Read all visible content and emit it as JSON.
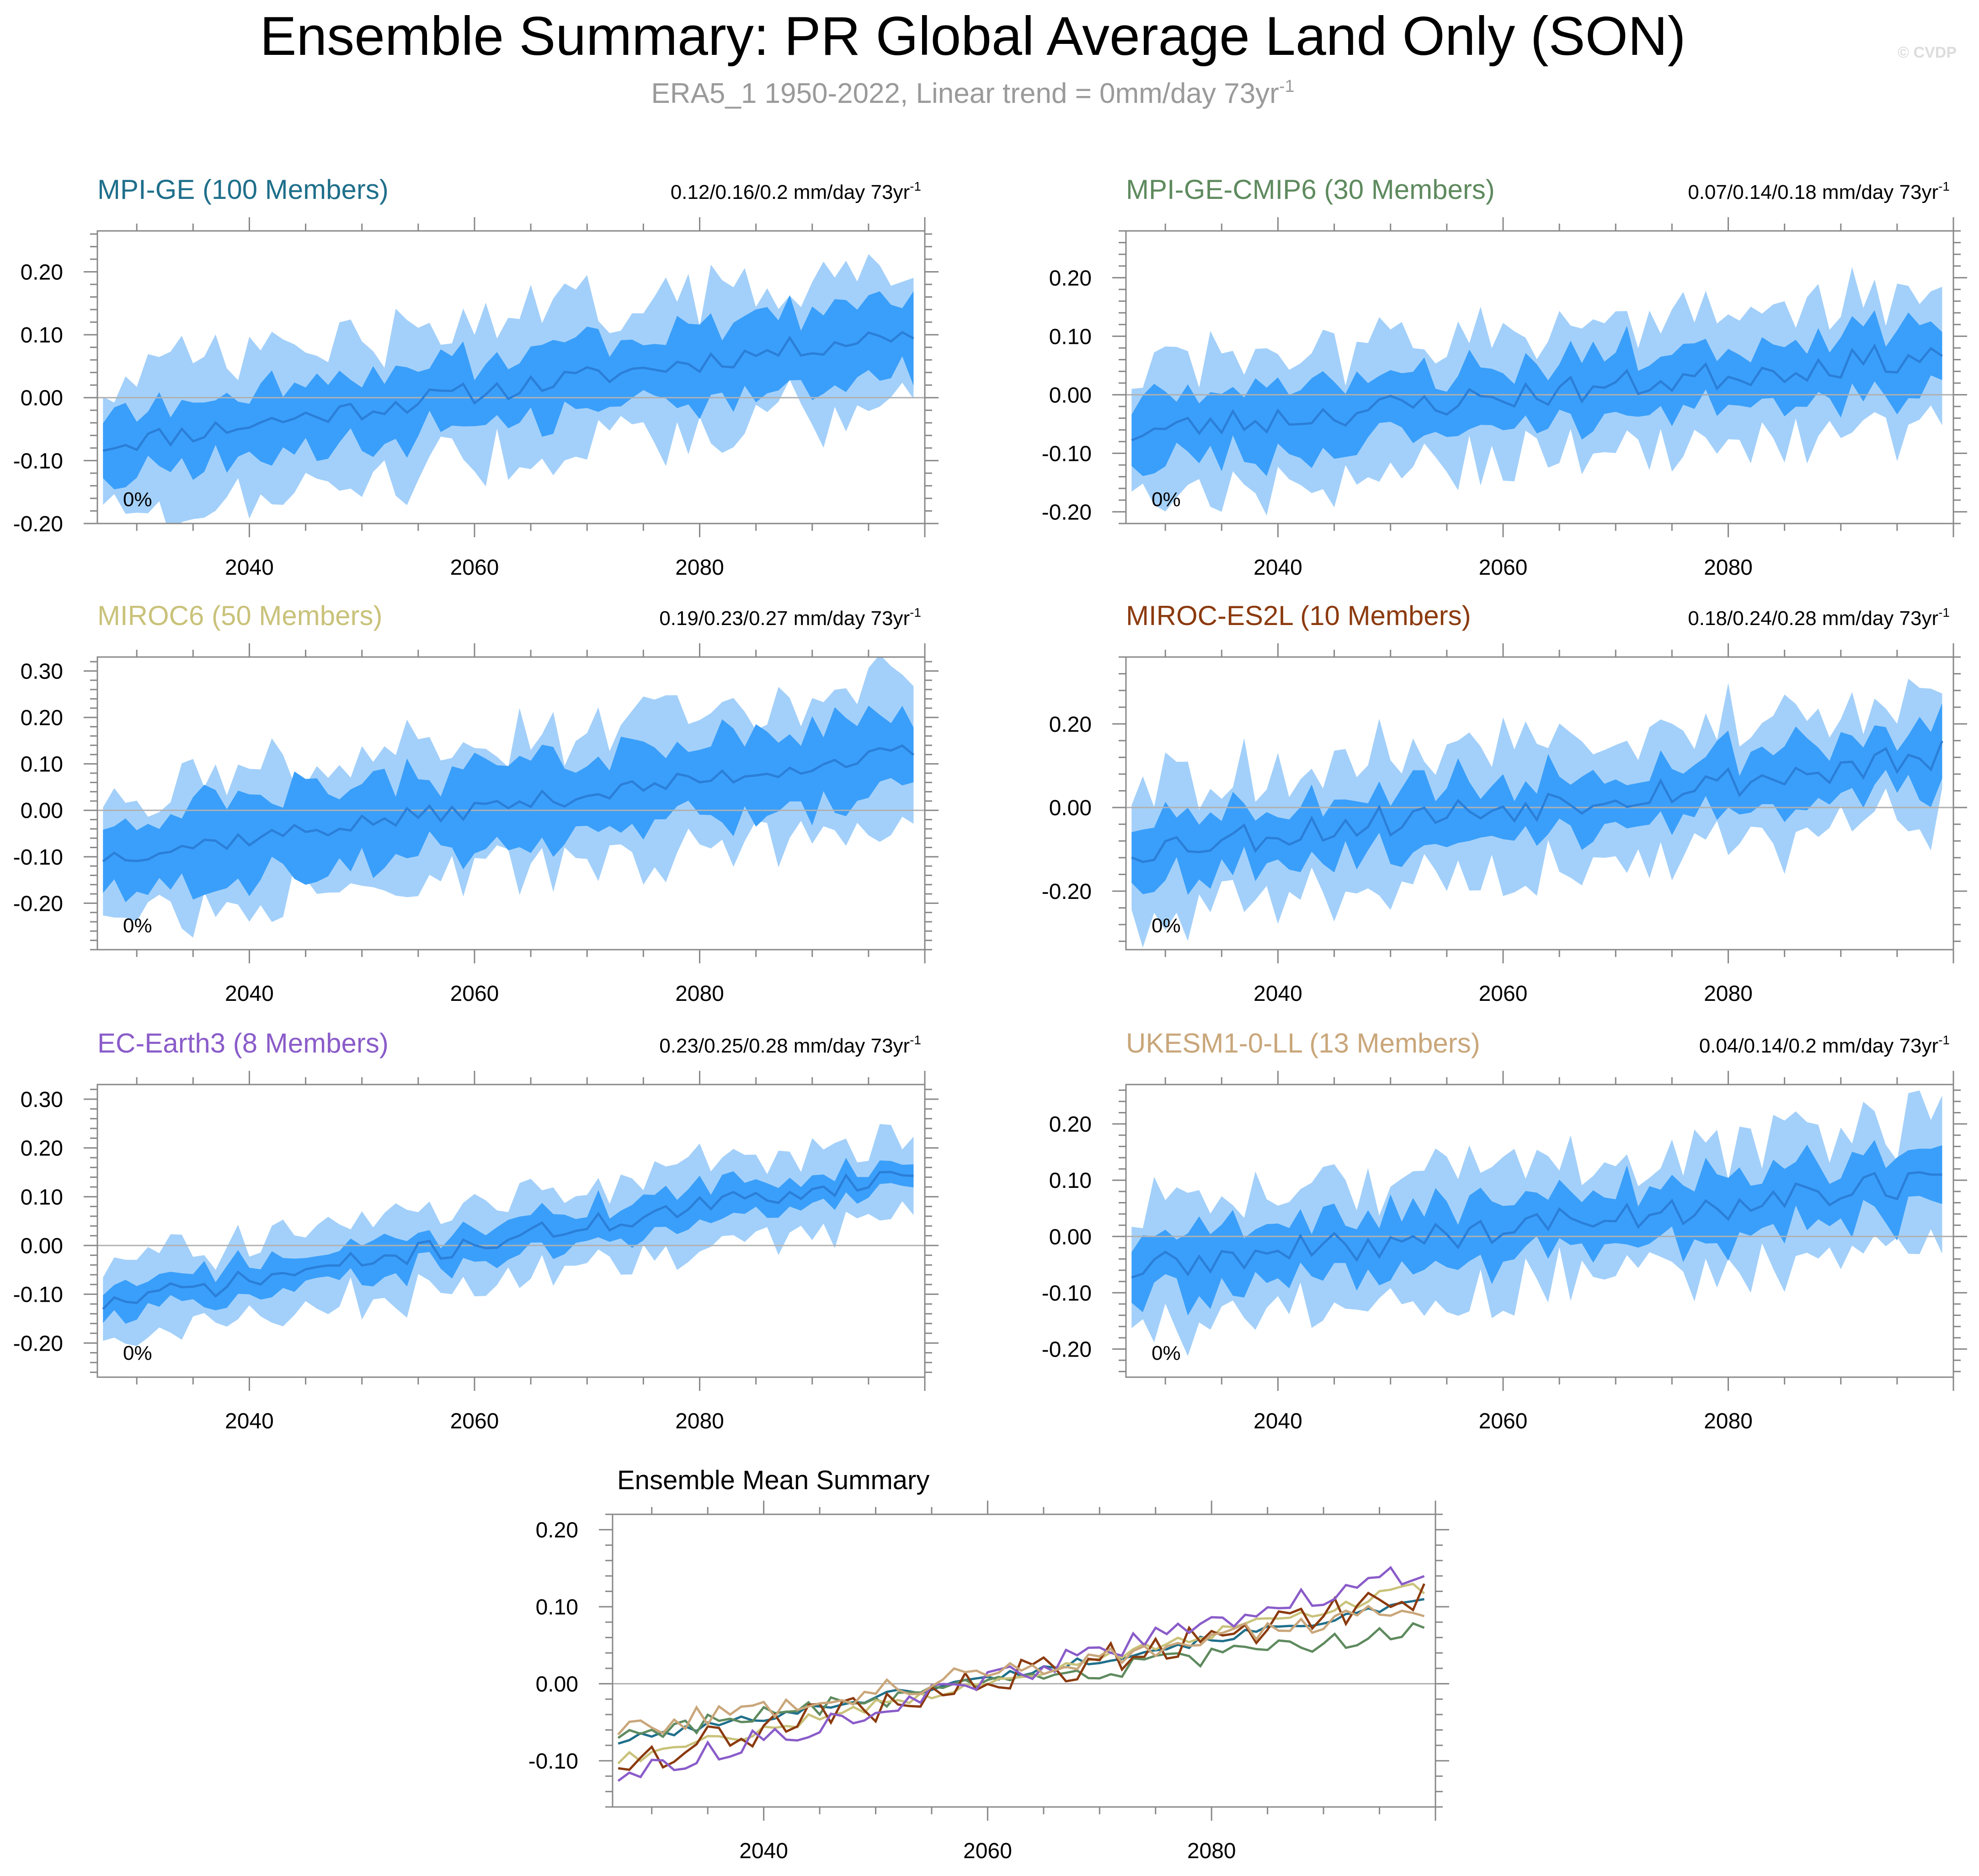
{
  "title": "Ensemble Summary: PR Global Average Land Only (SON)",
  "subtitle": "ERA5_1 1950-2022, Linear trend = 0mm/day 73yr",
  "subtitle_sup": "-1",
  "watermark": "© CVDP",
  "colors": {
    "outer_band": "#a3d0fa",
    "inner_band": "#3a9ffa",
    "mean_line": "#2b7fd8",
    "zero_line": "#b0b0b0",
    "axis": "#888888",
    "subtitle": "#9a9a9a"
  },
  "chart_data": [
    {
      "id": "mpi-ge",
      "type": "area",
      "title": "MPI-GE (100 Members)",
      "title_color": "#1f6f8b",
      "trend": "0.12/0.16/0.2 mm/day 73yr",
      "trend_sup": "-1",
      "percent": "0%",
      "xlim": [
        2026.5,
        2100
      ],
      "ylim": [
        -0.2,
        0.265
      ],
      "xticks": [
        2040,
        2060,
        2080
      ],
      "xtick_labels": [
        "2040",
        "2060",
        "2080"
      ],
      "yticks": [
        -0.2,
        -0.1,
        0.0,
        0.1,
        0.2
      ],
      "ytick_labels": [
        "-0.20",
        "-0.10",
        "0.00",
        "0.10",
        "0.20"
      ],
      "start_year": 2027,
      "mean_start": -0.075,
      "mean_end": 0.105,
      "inner_half": 0.055,
      "outer_half": 0.108,
      "noise": 0.018,
      "seed": 11
    },
    {
      "id": "mpi-ge-cmip6",
      "type": "area",
      "title": "MPI-GE-CMIP6 (30 Members)",
      "title_color": "#5e8a5e",
      "trend": "0.07/0.14/0.18 mm/day 73yr",
      "trend_sup": "-1",
      "percent": "0%",
      "xlim": [
        2026.5,
        2100
      ],
      "ylim": [
        -0.22,
        0.28
      ],
      "xticks": [
        2040,
        2060,
        2080
      ],
      "xtick_labels": [
        "2040",
        "2060",
        "2080"
      ],
      "yticks": [
        -0.2,
        -0.1,
        0.0,
        0.1,
        0.2
      ],
      "ytick_labels": [
        "-0.20",
        "-0.10",
        "0.00",
        "0.10",
        "0.20"
      ],
      "start_year": 2027,
      "mean_start": -0.065,
      "mean_end": 0.07,
      "inner_half": 0.055,
      "outer_half": 0.11,
      "noise": 0.025,
      "seed": 23
    },
    {
      "id": "miroc6",
      "type": "area",
      "title": "MIROC6 (50 Members)",
      "title_color": "#c9c27a",
      "trend": "0.19/0.23/0.27 mm/day 73yr",
      "trend_sup": "-1",
      "percent": "0%",
      "xlim": [
        2026.5,
        2100
      ],
      "ylim": [
        -0.3,
        0.33
      ],
      "xticks": [
        2040,
        2060,
        2080
      ],
      "xtick_labels": [
        "2040",
        "2060",
        "2080"
      ],
      "yticks": [
        -0.2,
        -0.1,
        0.0,
        0.1,
        0.2,
        0.3
      ],
      "ytick_labels": [
        "-0.20",
        "-0.10",
        "0.00",
        "0.10",
        "0.20",
        "0.30"
      ],
      "start_year": 2027,
      "mean_start": -0.1,
      "mean_end": 0.125,
      "inner_half": 0.085,
      "outer_half": 0.145,
      "noise": 0.02,
      "seed": 37
    },
    {
      "id": "miroc-es2l",
      "type": "area",
      "title": "MIROC-ES2L (10 Members)",
      "title_color": "#8b3a0e",
      "trend": "0.18/0.24/0.28 mm/day 73yr",
      "trend_sup": "-1",
      "percent": "0%",
      "xlim": [
        2026.5,
        2100
      ],
      "ylim": [
        -0.34,
        0.36
      ],
      "xticks": [
        2040,
        2060,
        2080
      ],
      "xtick_labels": [
        "2040",
        "2060",
        "2080"
      ],
      "yticks": [
        -0.2,
        0.0,
        0.2
      ],
      "ytick_labels": [
        "-0.20",
        "0.00",
        "0.20"
      ],
      "start_year": 2027,
      "mean_start": -0.1,
      "mean_end": 0.12,
      "inner_half": 0.075,
      "outer_half": 0.155,
      "noise": 0.04,
      "seed": 53
    },
    {
      "id": "ec-earth3",
      "type": "area",
      "title": "EC-Earth3 (8 Members)",
      "title_color": "#8a5cc9",
      "trend": "0.23/0.25/0.28 mm/day 73yr",
      "trend_sup": "-1",
      "percent": "0%",
      "xlim": [
        2026.5,
        2100
      ],
      "ylim": [
        -0.27,
        0.33
      ],
      "xticks": [
        2040,
        2060,
        2080
      ],
      "xtick_labels": [
        "2040",
        "2060",
        "2080"
      ],
      "yticks": [
        -0.2,
        -0.1,
        0.0,
        0.1,
        0.2,
        0.3
      ],
      "ytick_labels": [
        "-0.20",
        "-0.10",
        "0.00",
        "0.10",
        "0.20",
        "0.30"
      ],
      "start_year": 2027,
      "mean_start": -0.12,
      "mean_end": 0.15,
      "inner_half": 0.035,
      "outer_half": 0.08,
      "noise": 0.022,
      "seed": 71
    },
    {
      "id": "ukesm1-0-ll",
      "type": "area",
      "title": "UKESM1-0-LL (13 Members)",
      "title_color": "#c9a67a",
      "trend": "0.04/0.14/0.2 mm/day 73yr",
      "trend_sup": "-1",
      "percent": "0%",
      "xlim": [
        2026.5,
        2100
      ],
      "ylim": [
        -0.25,
        0.27
      ],
      "xticks": [
        2040,
        2060,
        2080
      ],
      "xtick_labels": [
        "2040",
        "2060",
        "2080"
      ],
      "yticks": [
        -0.2,
        -0.1,
        0.0,
        0.1,
        0.2
      ],
      "ytick_labels": [
        "-0.20",
        "-0.10",
        "0.00",
        "0.10",
        "0.20"
      ],
      "start_year": 2027,
      "mean_start": -0.06,
      "mean_end": 0.1,
      "inner_half": 0.055,
      "outer_half": 0.11,
      "noise": 0.028,
      "seed": 89
    },
    {
      "id": "ensemble-mean-summary",
      "type": "line",
      "title": "Ensemble Mean Summary",
      "title_color": "#000000",
      "xlim": [
        2026.5,
        2100
      ],
      "ylim": [
        -0.16,
        0.22
      ],
      "xticks": [
        2040,
        2060,
        2080
      ],
      "xtick_labels": [
        "2040",
        "2060",
        "2080"
      ],
      "yticks": [
        -0.1,
        0.0,
        0.1,
        0.2
      ],
      "ytick_labels": [
        "-0.10",
        "0.00",
        "0.10",
        "0.20"
      ],
      "start_year": 2027,
      "series": [
        {
          "name": "MPI-GE",
          "color": "#1f6f8b",
          "mean_start": -0.075,
          "mean_end": 0.105,
          "noise": 0.006,
          "seed": 101
        },
        {
          "name": "MPI-GE-CMIP6",
          "color": "#5e8a5e",
          "mean_start": -0.065,
          "mean_end": 0.07,
          "noise": 0.012,
          "seed": 103
        },
        {
          "name": "MIROC6",
          "color": "#c9c27a",
          "mean_start": -0.1,
          "mean_end": 0.125,
          "noise": 0.008,
          "seed": 107
        },
        {
          "name": "MIROC-ES2L",
          "color": "#8b3a0e",
          "mean_start": -0.1,
          "mean_end": 0.12,
          "noise": 0.022,
          "seed": 109
        },
        {
          "name": "EC-Earth3",
          "color": "#8a5cc9",
          "mean_start": -0.12,
          "mean_end": 0.15,
          "noise": 0.014,
          "seed": 113
        },
        {
          "name": "UKESM1-0-LL",
          "color": "#c9a67a",
          "mean_start": -0.06,
          "mean_end": 0.1,
          "noise": 0.014,
          "seed": 127
        }
      ]
    }
  ]
}
